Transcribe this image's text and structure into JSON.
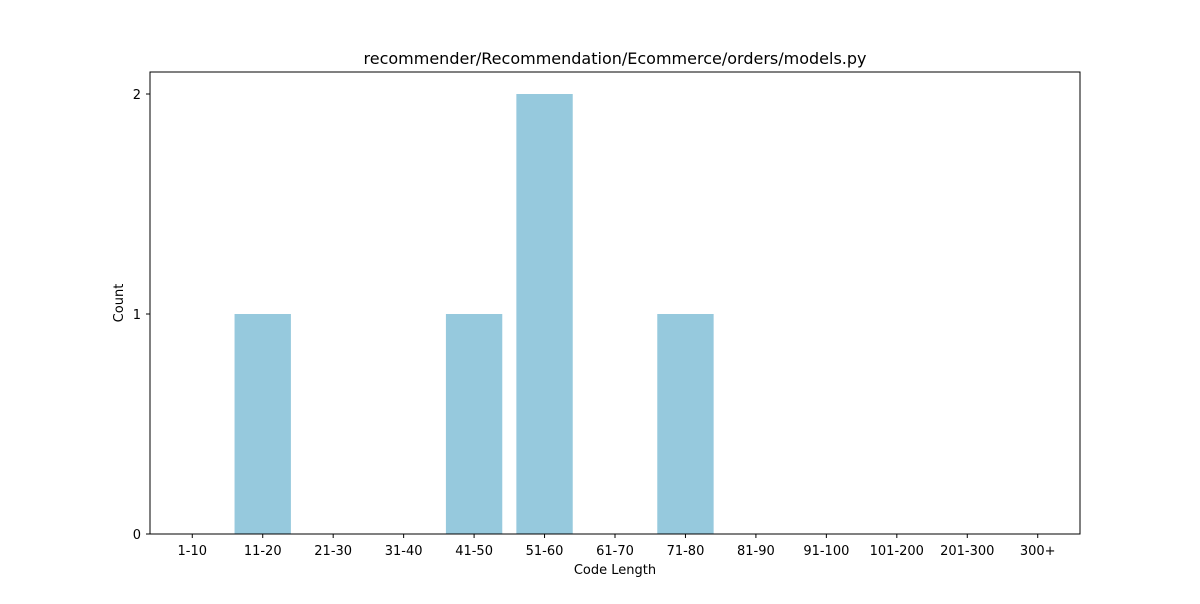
{
  "chart_data": {
    "type": "bar",
    "title": "recommender/Recommendation/Ecommerce/orders/models.py",
    "xlabel": "Code Length",
    "ylabel": "Count",
    "categories": [
      "1-10",
      "11-20",
      "21-30",
      "31-40",
      "41-50",
      "51-60",
      "61-70",
      "71-80",
      "81-90",
      "91-100",
      "101-200",
      "201-300",
      "300+"
    ],
    "values": [
      0,
      1,
      0,
      0,
      1,
      2,
      0,
      1,
      0,
      0,
      0,
      0,
      0
    ],
    "yticks": [
      0,
      1,
      2
    ],
    "ylim": [
      0,
      2.1
    ],
    "bar_color": "#96c9dd",
    "grid": false,
    "legend": false
  }
}
